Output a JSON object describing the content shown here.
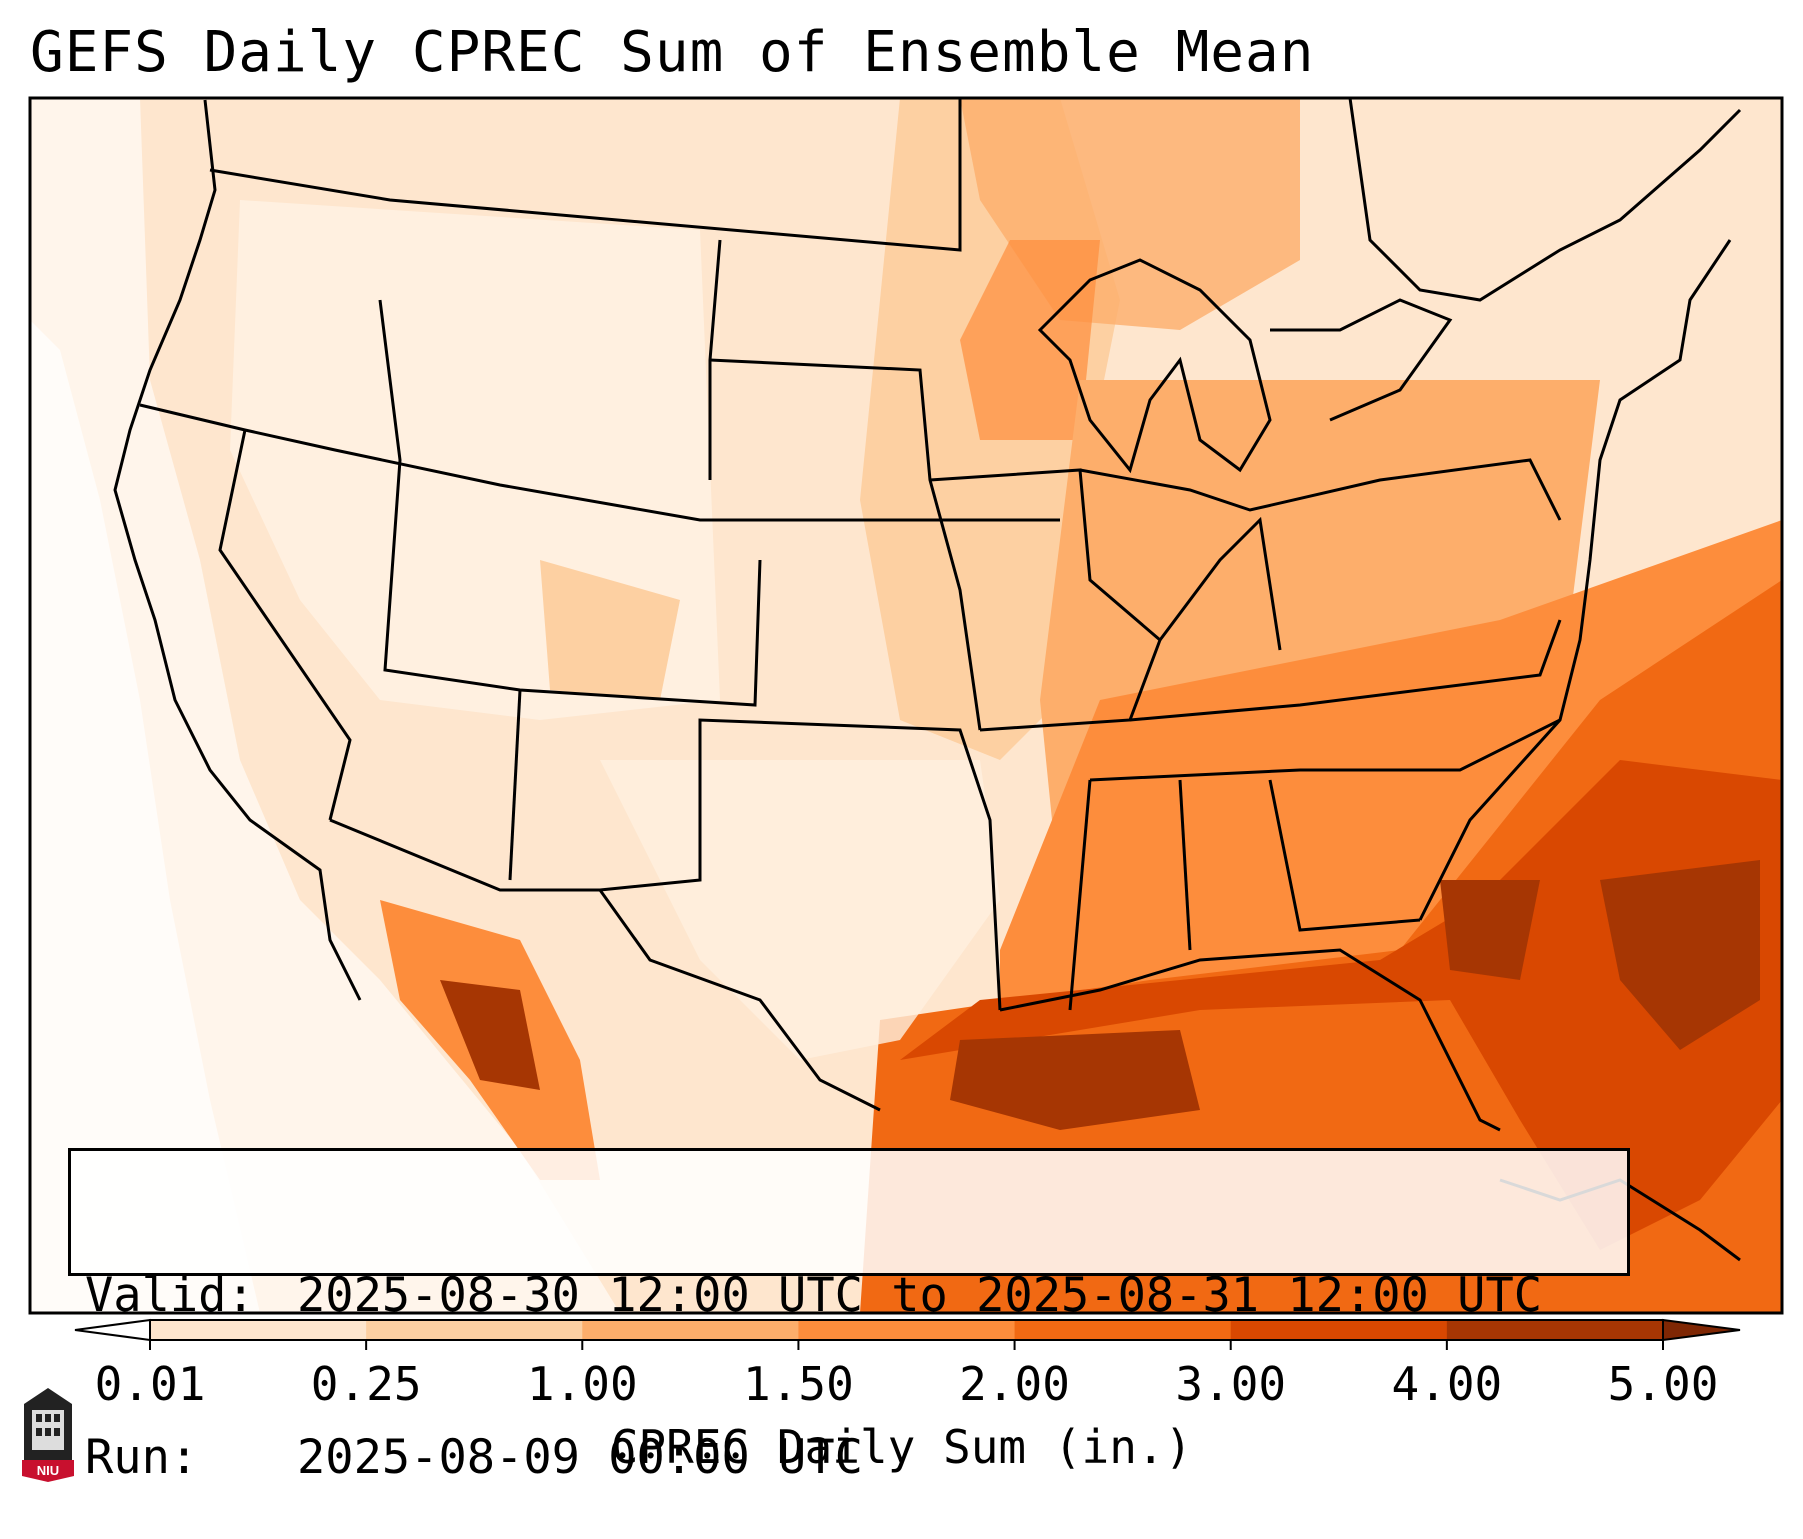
{
  "title": "GEFS Daily CPREC Sum of Ensemble Mean",
  "info": {
    "valid_label": "Valid:",
    "valid_value": "2025-08-30 12:00 UTC to 2025-08-31 12:00 UTC",
    "run_label": "Run:",
    "run_value": "2025-08-09 00:00 UTC"
  },
  "colorbar": {
    "label": "CPREC Daily Sum (in.)",
    "ticks": [
      "0.01",
      "0.25",
      "1.00",
      "1.50",
      "2.00",
      "3.00",
      "4.00",
      "5.00"
    ],
    "colors": [
      "#fff5eb",
      "#fee6ce",
      "#fdd0a2",
      "#fdae6b",
      "#fd8d3c",
      "#f16913",
      "#d94801",
      "#a63603",
      "#7f2704"
    ]
  },
  "logo": {
    "text": "NIU"
  }
}
